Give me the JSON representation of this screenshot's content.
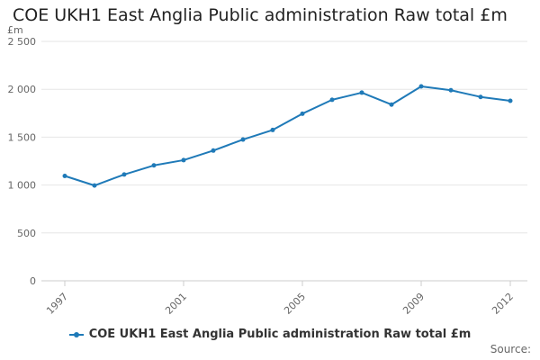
{
  "chart_data": {
    "type": "line",
    "title": "COE UKH1 East Anglia Public administration Raw total £m",
    "ylabel": "£m",
    "xlabel": "",
    "x": [
      1997,
      1998,
      1999,
      2000,
      2001,
      2002,
      2003,
      2004,
      2005,
      2006,
      2007,
      2008,
      2009,
      2010,
      2011,
      2012
    ],
    "x_tick_labels": [
      "1997",
      "2001",
      "2005",
      "2009",
      "2012"
    ],
    "xlim": [
      1997,
      2012
    ],
    "y_tick_labels": [
      "0",
      "500",
      "1 000",
      "1 500",
      "2 000",
      "2 500"
    ],
    "ylim": [
      0,
      2500
    ],
    "grid": true,
    "legend_position": "bottom",
    "series": [
      {
        "name": "COE UKH1 East Anglia Public administration Raw total £m",
        "color": "#1f7ab8",
        "values": [
          1095,
          995,
          1110,
          1205,
          1260,
          1360,
          1475,
          1575,
          1745,
          1890,
          1965,
          1840,
          2030,
          1990,
          1920,
          1880
        ]
      }
    ],
    "source_label": "Source:"
  }
}
